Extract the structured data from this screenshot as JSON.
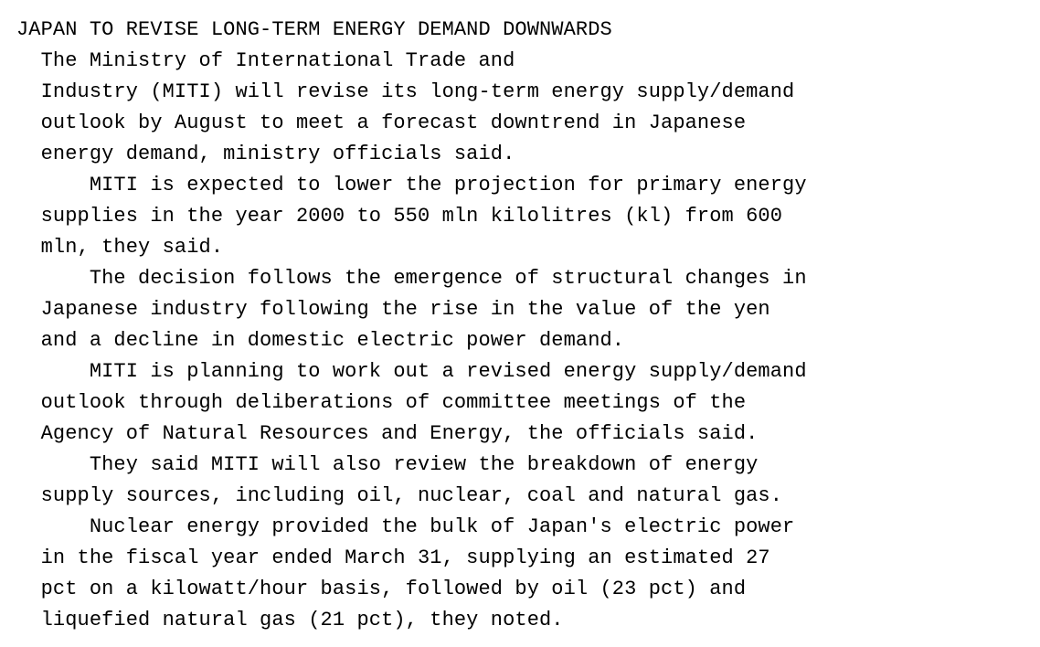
{
  "article": {
    "headline": "JAPAN TO REVISE LONG-TERM ENERGY DEMAND DOWNWARDS",
    "body_lines": [
      "  The Ministry of International Trade and",
      "  Industry (MITI) will revise its long-term energy supply/demand",
      "  outlook by August to meet a forecast downtrend in Japanese",
      "  energy demand, ministry officials said.",
      "      MITI is expected to lower the projection for primary energy",
      "  supplies in the year 2000 to 550 mln kilolitres (kl) from 600",
      "  mln, they said.",
      "      The decision follows the emergence of structural changes in",
      "  Japanese industry following the rise in the value of the yen",
      "  and a decline in domestic electric power demand.",
      "      MITI is planning to work out a revised energy supply/demand",
      "  outlook through deliberations of committee meetings of the",
      "  Agency of Natural Resources and Energy, the officials said.",
      "      They said MITI will also review the breakdown of energy",
      "  supply sources, including oil, nuclear, coal and natural gas.",
      "      Nuclear energy provided the bulk of Japan's electric power",
      "  in the fiscal year ended March 31, supplying an estimated 27",
      "  pct on a kilowatt/hour basis, followed by oil (23 pct) and",
      "  liquefied natural gas (21 pct), they noted."
    ]
  }
}
